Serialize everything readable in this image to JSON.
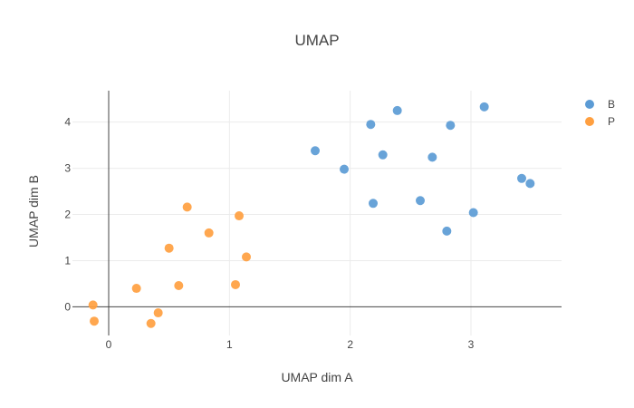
{
  "chart_data": {
    "type": "scatter",
    "title": "UMAP",
    "xlabel": "UMAP dim A",
    "ylabel": "UMAP dim B",
    "xlim": [
      -0.3,
      3.75
    ],
    "ylim": [
      -0.62,
      4.68
    ],
    "xticks": [
      0,
      1,
      2,
      3
    ],
    "yticks": [
      0,
      1,
      2,
      3,
      4
    ],
    "grid": true,
    "legend_position": "top-right",
    "series": [
      {
        "name": "B",
        "color": "#5b9bd5",
        "points": [
          {
            "x": 1.71,
            "y": 3.38
          },
          {
            "x": 1.95,
            "y": 2.98
          },
          {
            "x": 2.17,
            "y": 3.95
          },
          {
            "x": 2.39,
            "y": 4.25
          },
          {
            "x": 2.27,
            "y": 3.29
          },
          {
            "x": 2.19,
            "y": 2.24
          },
          {
            "x": 2.58,
            "y": 2.3
          },
          {
            "x": 2.68,
            "y": 3.24
          },
          {
            "x": 2.83,
            "y": 3.93
          },
          {
            "x": 3.11,
            "y": 4.33
          },
          {
            "x": 2.8,
            "y": 1.64
          },
          {
            "x": 3.02,
            "y": 2.04
          },
          {
            "x": 3.42,
            "y": 2.78
          },
          {
            "x": 3.49,
            "y": 2.67
          }
        ]
      },
      {
        "name": "P",
        "color": "#ff9f40",
        "points": [
          {
            "x": -0.13,
            "y": 0.04
          },
          {
            "x": -0.12,
            "y": -0.31
          },
          {
            "x": 0.23,
            "y": 0.4
          },
          {
            "x": 0.35,
            "y": -0.36
          },
          {
            "x": 0.41,
            "y": -0.13
          },
          {
            "x": 0.5,
            "y": 1.27
          },
          {
            "x": 0.58,
            "y": 0.46
          },
          {
            "x": 0.65,
            "y": 2.16
          },
          {
            "x": 0.83,
            "y": 1.6
          },
          {
            "x": 1.05,
            "y": 0.48
          },
          {
            "x": 1.08,
            "y": 1.97
          },
          {
            "x": 1.14,
            "y": 1.08
          }
        ]
      }
    ]
  }
}
